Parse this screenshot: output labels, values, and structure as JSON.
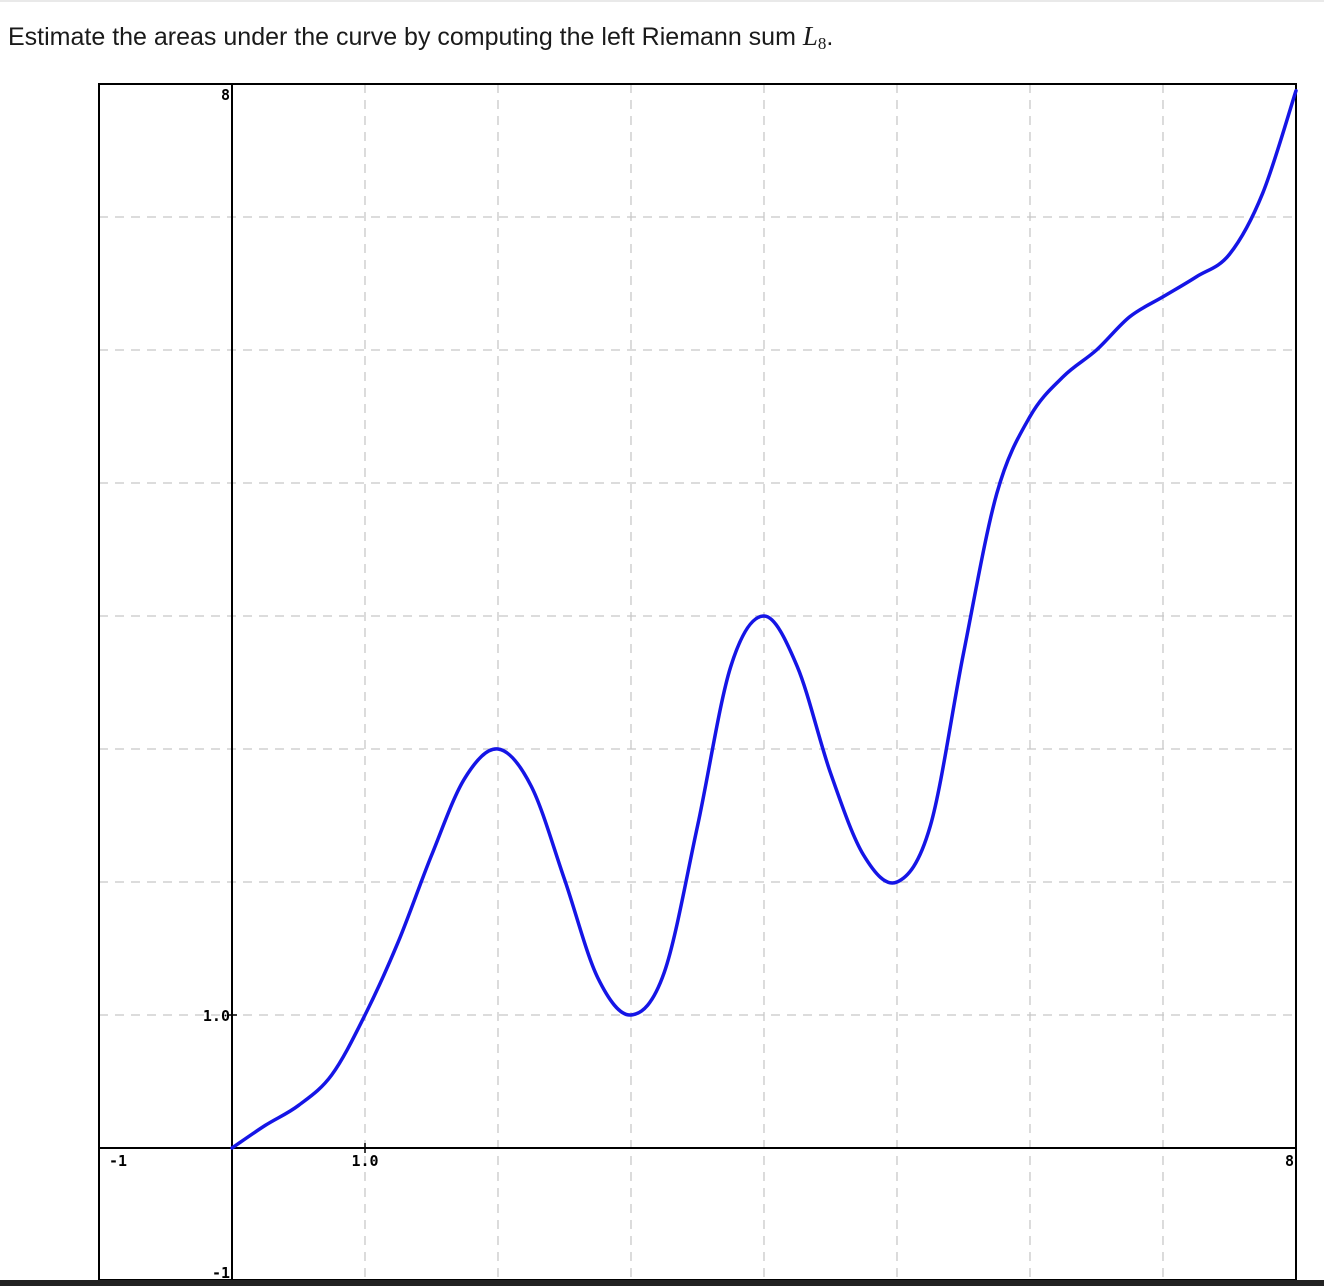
{
  "question": {
    "text": "Estimate the areas under the curve by computing the left Riemann sum",
    "math_symbol": "L",
    "math_subscript": "8",
    "trailing": "."
  },
  "chart_data": {
    "type": "line",
    "xlim": [
      -1,
      8
    ],
    "ylim": [
      -1,
      8
    ],
    "grid": true,
    "grid_step": 1,
    "x_tick_labels": [
      {
        "value": -1,
        "text": "-1"
      },
      {
        "value": 1,
        "text": "1.0"
      },
      {
        "value": 8,
        "text": "8"
      }
    ],
    "y_tick_labels": [
      {
        "value": 8,
        "text": "8"
      },
      {
        "value": 1,
        "text": "1.0"
      },
      {
        "value": -1,
        "text": "-1"
      }
    ],
    "series": [
      {
        "color": "#1515e6",
        "points": [
          [
            0,
            0
          ],
          [
            0.25,
            0.17
          ],
          [
            0.5,
            0.32
          ],
          [
            0.75,
            0.55
          ],
          [
            1,
            1
          ],
          [
            1.25,
            1.55
          ],
          [
            1.5,
            2.2
          ],
          [
            1.75,
            2.78
          ],
          [
            2,
            3
          ],
          [
            2.25,
            2.72
          ],
          [
            2.5,
            2.02
          ],
          [
            2.75,
            1.28
          ],
          [
            3,
            1
          ],
          [
            3.25,
            1.32
          ],
          [
            3.5,
            2.42
          ],
          [
            3.75,
            3.62
          ],
          [
            4,
            4
          ],
          [
            4.25,
            3.62
          ],
          [
            4.5,
            2.82
          ],
          [
            4.75,
            2.2
          ],
          [
            5,
            2
          ],
          [
            5.25,
            2.42
          ],
          [
            5.5,
            3.72
          ],
          [
            5.75,
            4.92
          ],
          [
            6,
            5.5
          ],
          [
            6.25,
            5.8
          ],
          [
            6.5,
            6
          ],
          [
            6.75,
            6.25
          ],
          [
            7,
            6.4
          ],
          [
            7.25,
            6.55
          ],
          [
            7.5,
            6.72
          ],
          [
            7.75,
            7.18
          ],
          [
            8,
            7.95
          ]
        ]
      }
    ]
  }
}
